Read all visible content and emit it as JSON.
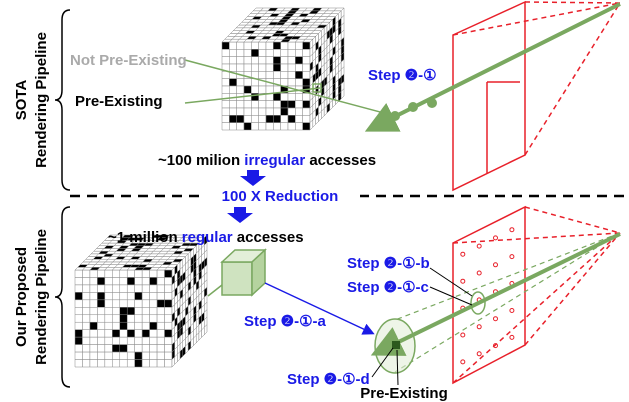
{
  "top": {
    "label_line1": "SOTA",
    "label_line2": "Rendering Pipeline",
    "not_pre_existing": "Not Pre-Existing",
    "pre_existing": "Pre-Existing",
    "step": "Step ❷-①",
    "accesses": {
      "prefix": "~100 milion ",
      "highlight": "irregular",
      "suffix": " accesses"
    }
  },
  "reduction": "100 X Reduction",
  "bottom": {
    "label_line1": "Our Proposed",
    "label_line2": "Rendering Pipeline",
    "accesses": {
      "prefix": "~1 million ",
      "highlight": "regular",
      "suffix": " accesses"
    },
    "step_b": "Step ❷-①-b",
    "step_c": "Step ❷-①-c",
    "step_a": "Step ❷-①-a",
    "step_d": "Step ❷-①-d",
    "pre_existing": "Pre-Existing"
  }
}
